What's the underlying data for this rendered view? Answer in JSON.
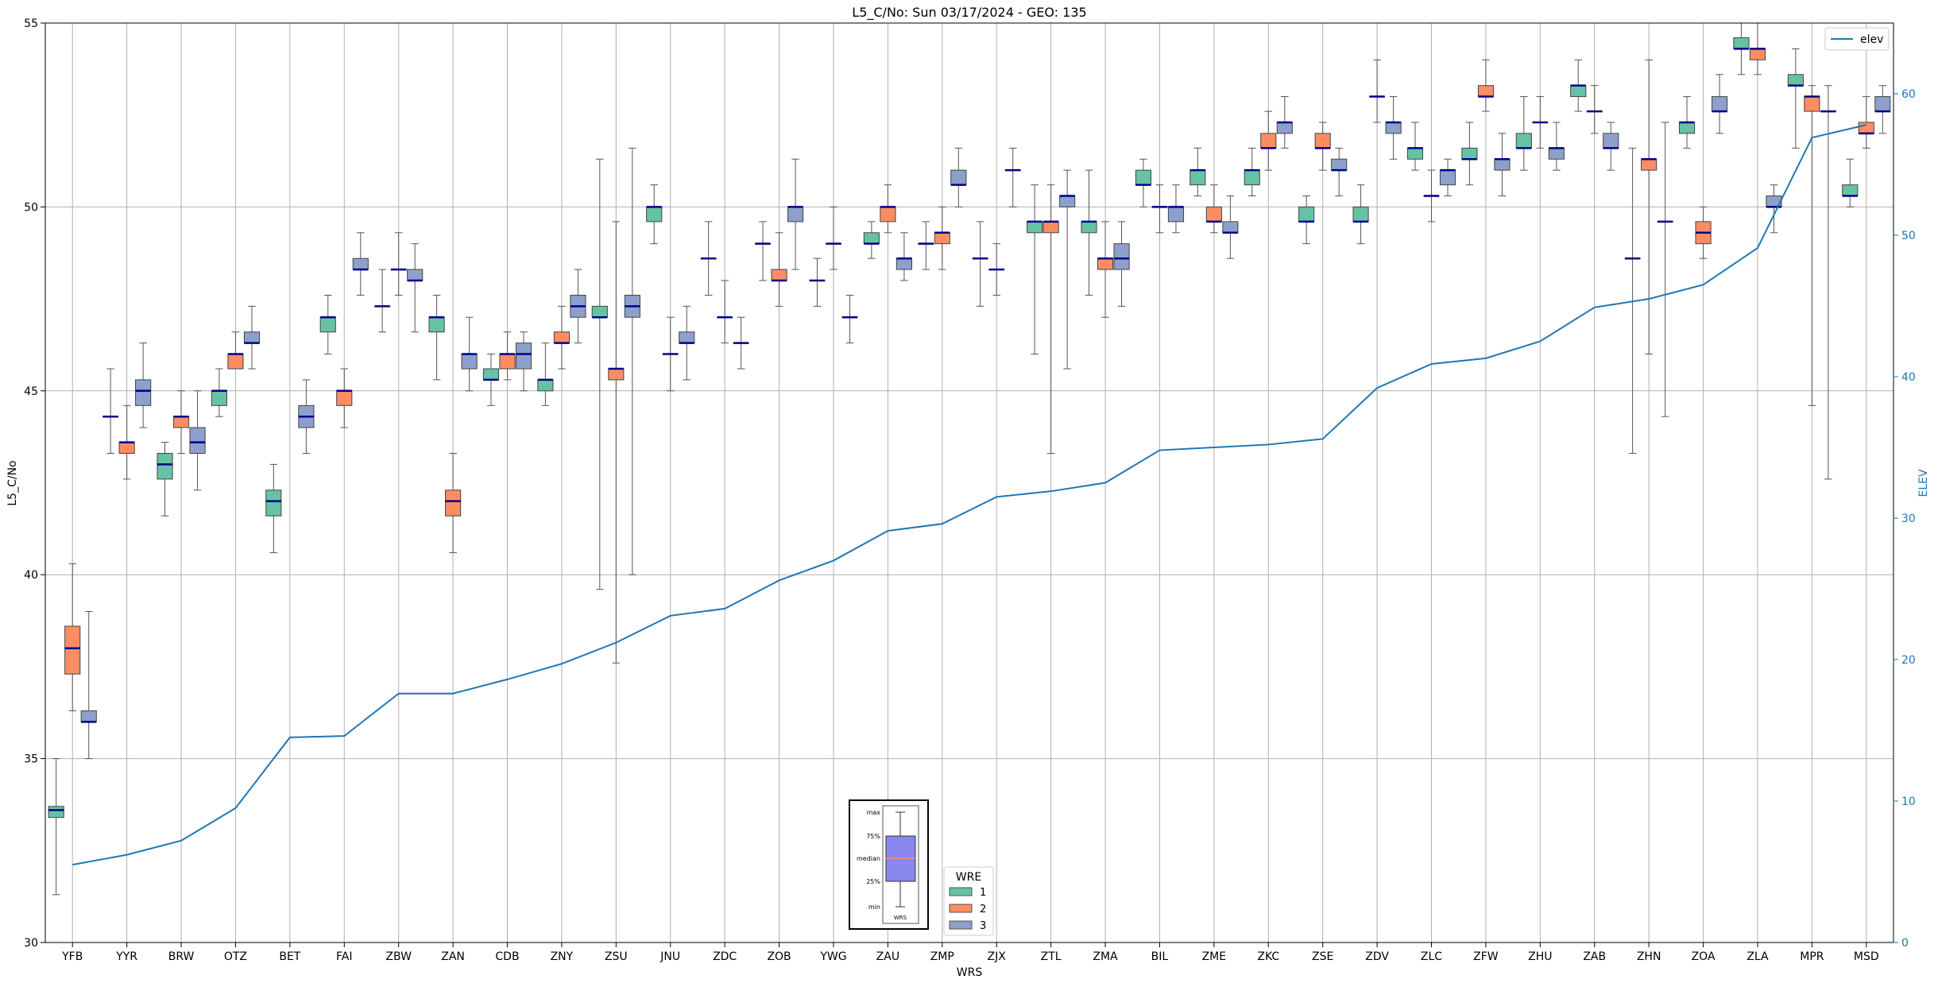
{
  "chart_data": {
    "type": "box",
    "title": "L5_C/No: Sun 03/17/2024 - GEO: 135",
    "xlabel": "WRS",
    "ylabel": "L5_C/No",
    "y2label": "ELEV",
    "ylim": [
      30,
      55
    ],
    "y2lim": [
      0,
      65
    ],
    "yticks": [
      30,
      35,
      40,
      45,
      50,
      55
    ],
    "y2ticks": [
      0,
      10,
      20,
      30,
      40,
      50,
      60
    ],
    "grid": true,
    "categories": [
      "YFB",
      "YYR",
      "BRW",
      "OTZ",
      "BET",
      "FAI",
      "ZBW",
      "ZAN",
      "CDB",
      "ZNY",
      "ZSU",
      "JNU",
      "ZDC",
      "ZOB",
      "YWG",
      "ZAU",
      "ZMP",
      "ZJX",
      "ZTL",
      "ZMA",
      "BIL",
      "ZME",
      "ZKC",
      "ZSE",
      "ZDV",
      "ZLC",
      "ZFW",
      "ZHU",
      "ZAB",
      "ZHN",
      "ZOA",
      "ZLA",
      "MPR",
      "MSD"
    ],
    "wre_colors": {
      "1": "#66c2a5",
      "2": "#fc8d62",
      "3": "#8da0cb"
    },
    "boxes": [
      {
        "station": "YFB",
        "wre": "1",
        "min": 31.3,
        "q1": 33.4,
        "median": 33.6,
        "q3": 33.7,
        "max": 35.0
      },
      {
        "station": "YFB",
        "wre": "2",
        "min": 36.3,
        "q1": 37.3,
        "median": 38.0,
        "q3": 38.6,
        "max": 40.3
      },
      {
        "station": "YFB",
        "wre": "3",
        "min": 35.0,
        "q1": 36.0,
        "median": 36.0,
        "q3": 36.3,
        "max": 39.0
      },
      {
        "station": "YYR",
        "wre": "1",
        "min": 43.3,
        "q1": 44.3,
        "median": 44.3,
        "q3": 44.3,
        "max": 45.6
      },
      {
        "station": "YYR",
        "wre": "2",
        "min": 42.6,
        "q1": 43.3,
        "median": 43.6,
        "q3": 43.6,
        "max": 44.6
      },
      {
        "station": "YYR",
        "wre": "3",
        "min": 44.0,
        "q1": 44.6,
        "median": 45.0,
        "q3": 45.3,
        "max": 46.3
      },
      {
        "station": "BRW",
        "wre": "1",
        "min": 41.6,
        "q1": 42.6,
        "median": 43.0,
        "q3": 43.3,
        "max": 43.6
      },
      {
        "station": "BRW",
        "wre": "2",
        "min": 43.3,
        "q1": 44.0,
        "median": 44.3,
        "q3": 44.3,
        "max": 45.0
      },
      {
        "station": "BRW",
        "wre": "3",
        "min": 42.3,
        "q1": 43.3,
        "median": 43.6,
        "q3": 44.0,
        "max": 45.0
      },
      {
        "station": "OTZ",
        "wre": "1",
        "min": 44.3,
        "q1": 44.6,
        "median": 45.0,
        "q3": 45.0,
        "max": 45.6
      },
      {
        "station": "OTZ",
        "wre": "2",
        "min": 45.6,
        "q1": 45.6,
        "median": 46.0,
        "q3": 46.0,
        "max": 46.6
      },
      {
        "station": "OTZ",
        "wre": "3",
        "min": 45.6,
        "q1": 46.3,
        "median": 46.3,
        "q3": 46.6,
        "max": 47.3
      },
      {
        "station": "BET",
        "wre": "1",
        "min": 40.6,
        "q1": 41.6,
        "median": 42.0,
        "q3": 42.3,
        "max": 43.0
      },
      {
        "station": "BET",
        "wre": "3",
        "min": 43.3,
        "q1": 44.0,
        "median": 44.3,
        "q3": 44.6,
        "max": 45.3
      },
      {
        "station": "FAI",
        "wre": "1",
        "min": 46.0,
        "q1": 46.6,
        "median": 47.0,
        "q3": 47.0,
        "max": 47.6
      },
      {
        "station": "FAI",
        "wre": "2",
        "min": 44.0,
        "q1": 44.6,
        "median": 45.0,
        "q3": 45.0,
        "max": 45.6
      },
      {
        "station": "FAI",
        "wre": "3",
        "min": 47.6,
        "q1": 48.3,
        "median": 48.3,
        "q3": 48.6,
        "max": 49.3
      },
      {
        "station": "ZBW",
        "wre": "1",
        "min": 46.6,
        "q1": 47.3,
        "median": 47.3,
        "q3": 47.3,
        "max": 48.3
      },
      {
        "station": "ZBW",
        "wre": "2",
        "min": 47.6,
        "q1": 48.3,
        "median": 48.3,
        "q3": 48.3,
        "max": 49.3
      },
      {
        "station": "ZBW",
        "wre": "3",
        "min": 46.6,
        "q1": 48.0,
        "median": 48.0,
        "q3": 48.3,
        "max": 49.0
      },
      {
        "station": "ZAN",
        "wre": "1",
        "min": 45.3,
        "q1": 46.6,
        "median": 47.0,
        "q3": 47.0,
        "max": 47.6
      },
      {
        "station": "ZAN",
        "wre": "2",
        "min": 40.6,
        "q1": 41.6,
        "median": 42.0,
        "q3": 42.3,
        "max": 43.3
      },
      {
        "station": "ZAN",
        "wre": "3",
        "min": 45.0,
        "q1": 45.6,
        "median": 46.0,
        "q3": 46.0,
        "max": 47.0
      },
      {
        "station": "CDB",
        "wre": "1",
        "min": 44.6,
        "q1": 45.3,
        "median": 45.3,
        "q3": 45.6,
        "max": 46.0
      },
      {
        "station": "CDB",
        "wre": "2",
        "min": 45.3,
        "q1": 45.6,
        "median": 46.0,
        "q3": 46.0,
        "max": 46.6
      },
      {
        "station": "CDB",
        "wre": "3",
        "min": 45.0,
        "q1": 45.6,
        "median": 46.0,
        "q3": 46.3,
        "max": 46.6
      },
      {
        "station": "ZNY",
        "wre": "1",
        "min": 44.6,
        "q1": 45.0,
        "median": 45.3,
        "q3": 45.3,
        "max": 46.3
      },
      {
        "station": "ZNY",
        "wre": "2",
        "min": 45.6,
        "q1": 46.3,
        "median": 46.3,
        "q3": 46.6,
        "max": 47.3
      },
      {
        "station": "ZNY",
        "wre": "3",
        "min": 46.3,
        "q1": 47.0,
        "median": 47.3,
        "q3": 47.6,
        "max": 48.3
      },
      {
        "station": "ZSU",
        "wre": "1",
        "min": 39.6,
        "q1": 47.0,
        "median": 47.0,
        "q3": 47.3,
        "max": 51.3
      },
      {
        "station": "ZSU",
        "wre": "2",
        "min": 37.6,
        "q1": 45.3,
        "median": 45.6,
        "q3": 45.6,
        "max": 49.6
      },
      {
        "station": "ZSU",
        "wre": "3",
        "min": 40.0,
        "q1": 47.0,
        "median": 47.3,
        "q3": 47.6,
        "max": 51.6
      },
      {
        "station": "JNU",
        "wre": "1",
        "min": 49.0,
        "q1": 49.6,
        "median": 50.0,
        "q3": 50.0,
        "max": 50.6
      },
      {
        "station": "JNU",
        "wre": "2",
        "min": 45.0,
        "q1": 46.0,
        "median": 46.0,
        "q3": 46.0,
        "max": 47.0
      },
      {
        "station": "JNU",
        "wre": "3",
        "min": 45.3,
        "q1": 46.3,
        "median": 46.3,
        "q3": 46.6,
        "max": 47.3
      },
      {
        "station": "ZDC",
        "wre": "1",
        "min": 47.6,
        "q1": 48.6,
        "median": 48.6,
        "q3": 48.6,
        "max": 49.6
      },
      {
        "station": "ZDC",
        "wre": "2",
        "min": 46.3,
        "q1": 47.0,
        "median": 47.0,
        "q3": 47.0,
        "max": 48.0
      },
      {
        "station": "ZDC",
        "wre": "3",
        "min": 45.6,
        "q1": 46.3,
        "median": 46.3,
        "q3": 46.3,
        "max": 47.0
      },
      {
        "station": "ZOB",
        "wre": "1",
        "min": 48.0,
        "q1": 49.0,
        "median": 49.0,
        "q3": 49.0,
        "max": 49.6
      },
      {
        "station": "ZOB",
        "wre": "2",
        "min": 47.3,
        "q1": 48.0,
        "median": 48.0,
        "q3": 48.3,
        "max": 49.3
      },
      {
        "station": "ZOB",
        "wre": "3",
        "min": 48.3,
        "q1": 49.6,
        "median": 50.0,
        "q3": 50.0,
        "max": 51.3
      },
      {
        "station": "YWG",
        "wre": "1",
        "min": 47.3,
        "q1": 48.0,
        "median": 48.0,
        "q3": 48.0,
        "max": 48.6
      },
      {
        "station": "YWG",
        "wre": "2",
        "min": 48.3,
        "q1": 49.0,
        "median": 49.0,
        "q3": 49.0,
        "max": 50.0
      },
      {
        "station": "YWG",
        "wre": "3",
        "min": 46.3,
        "q1": 47.0,
        "median": 47.0,
        "q3": 47.0,
        "max": 47.6
      },
      {
        "station": "ZAU",
        "wre": "1",
        "min": 48.6,
        "q1": 49.0,
        "median": 49.0,
        "q3": 49.3,
        "max": 49.6
      },
      {
        "station": "ZAU",
        "wre": "2",
        "min": 49.3,
        "q1": 49.6,
        "median": 50.0,
        "q3": 50.0,
        "max": 50.6
      },
      {
        "station": "ZAU",
        "wre": "3",
        "min": 48.0,
        "q1": 48.3,
        "median": 48.6,
        "q3": 48.6,
        "max": 49.3
      },
      {
        "station": "ZMP",
        "wre": "1",
        "min": 48.3,
        "q1": 49.0,
        "median": 49.0,
        "q3": 49.0,
        "max": 49.6
      },
      {
        "station": "ZMP",
        "wre": "2",
        "min": 48.3,
        "q1": 49.0,
        "median": 49.3,
        "q3": 49.3,
        "max": 50.0
      },
      {
        "station": "ZMP",
        "wre": "3",
        "min": 50.0,
        "q1": 50.6,
        "median": 50.6,
        "q3": 51.0,
        "max": 51.6
      },
      {
        "station": "ZJX",
        "wre": "1",
        "min": 47.3,
        "q1": 48.6,
        "median": 48.6,
        "q3": 48.6,
        "max": 49.6
      },
      {
        "station": "ZJX",
        "wre": "2",
        "min": 47.6,
        "q1": 48.3,
        "median": 48.3,
        "q3": 48.3,
        "max": 49.0
      },
      {
        "station": "ZJX",
        "wre": "3",
        "min": 50.0,
        "q1": 51.0,
        "median": 51.0,
        "q3": 51.0,
        "max": 51.6
      },
      {
        "station": "ZTL",
        "wre": "1",
        "min": 46.0,
        "q1": 49.3,
        "median": 49.6,
        "q3": 49.6,
        "max": 50.6
      },
      {
        "station": "ZTL",
        "wre": "2",
        "min": 43.3,
        "q1": 49.3,
        "median": 49.6,
        "q3": 49.6,
        "max": 50.6
      },
      {
        "station": "ZTL",
        "wre": "3",
        "min": 45.6,
        "q1": 50.0,
        "median": 50.3,
        "q3": 50.3,
        "max": 51.0
      },
      {
        "station": "ZMA",
        "wre": "1",
        "min": 47.6,
        "q1": 49.3,
        "median": 49.6,
        "q3": 49.6,
        "max": 51.0
      },
      {
        "station": "ZMA",
        "wre": "2",
        "min": 47.0,
        "q1": 48.3,
        "median": 48.6,
        "q3": 48.6,
        "max": 49.6
      },
      {
        "station": "ZMA",
        "wre": "3",
        "min": 47.3,
        "q1": 48.3,
        "median": 48.6,
        "q3": 49.0,
        "max": 49.6
      },
      {
        "station": "BIL",
        "wre": "1",
        "min": 50.0,
        "q1": 50.6,
        "median": 50.6,
        "q3": 51.0,
        "max": 51.3
      },
      {
        "station": "BIL",
        "wre": "2",
        "min": 49.3,
        "q1": 50.0,
        "median": 50.0,
        "q3": 50.0,
        "max": 50.6
      },
      {
        "station": "BIL",
        "wre": "3",
        "min": 49.3,
        "q1": 49.6,
        "median": 50.0,
        "q3": 50.0,
        "max": 50.6
      },
      {
        "station": "ZME",
        "wre": "1",
        "min": 50.3,
        "q1": 50.6,
        "median": 51.0,
        "q3": 51.0,
        "max": 51.6
      },
      {
        "station": "ZME",
        "wre": "2",
        "min": 49.3,
        "q1": 49.6,
        "median": 49.6,
        "q3": 50.0,
        "max": 50.6
      },
      {
        "station": "ZME",
        "wre": "3",
        "min": 48.6,
        "q1": 49.3,
        "median": 49.3,
        "q3": 49.6,
        "max": 50.3
      },
      {
        "station": "ZKC",
        "wre": "1",
        "min": 50.3,
        "q1": 50.6,
        "median": 51.0,
        "q3": 51.0,
        "max": 51.6
      },
      {
        "station": "ZKC",
        "wre": "2",
        "min": 51.0,
        "q1": 51.6,
        "median": 51.6,
        "q3": 52.0,
        "max": 52.6
      },
      {
        "station": "ZKC",
        "wre": "3",
        "min": 51.6,
        "q1": 52.0,
        "median": 52.3,
        "q3": 52.3,
        "max": 53.0
      },
      {
        "station": "ZSE",
        "wre": "1",
        "min": 49.0,
        "q1": 49.6,
        "median": 49.6,
        "q3": 50.0,
        "max": 50.3
      },
      {
        "station": "ZSE",
        "wre": "2",
        "min": 51.0,
        "q1": 51.6,
        "median": 51.6,
        "q3": 52.0,
        "max": 52.3
      },
      {
        "station": "ZSE",
        "wre": "3",
        "min": 50.3,
        "q1": 51.0,
        "median": 51.0,
        "q3": 51.3,
        "max": 51.6
      },
      {
        "station": "ZDV",
        "wre": "1",
        "min": 49.0,
        "q1": 49.6,
        "median": 49.6,
        "q3": 50.0,
        "max": 50.6
      },
      {
        "station": "ZDV",
        "wre": "2",
        "min": 52.3,
        "q1": 53.0,
        "median": 53.0,
        "q3": 53.0,
        "max": 54.0
      },
      {
        "station": "ZDV",
        "wre": "3",
        "min": 51.3,
        "q1": 52.0,
        "median": 52.3,
        "q3": 52.3,
        "max": 53.0
      },
      {
        "station": "ZLC",
        "wre": "1",
        "min": 51.0,
        "q1": 51.3,
        "median": 51.6,
        "q3": 51.6,
        "max": 52.3
      },
      {
        "station": "ZLC",
        "wre": "2",
        "min": 49.6,
        "q1": 50.3,
        "median": 50.3,
        "q3": 50.3,
        "max": 51.0
      },
      {
        "station": "ZLC",
        "wre": "3",
        "min": 50.3,
        "q1": 50.6,
        "median": 51.0,
        "q3": 51.0,
        "max": 51.3
      },
      {
        "station": "ZFW",
        "wre": "1",
        "min": 50.6,
        "q1": 51.3,
        "median": 51.3,
        "q3": 51.6,
        "max": 52.3
      },
      {
        "station": "ZFW",
        "wre": "2",
        "min": 52.6,
        "q1": 53.0,
        "median": 53.0,
        "q3": 53.3,
        "max": 54.0
      },
      {
        "station": "ZFW",
        "wre": "3",
        "min": 50.3,
        "q1": 51.0,
        "median": 51.3,
        "q3": 51.3,
        "max": 52.0
      },
      {
        "station": "ZHU",
        "wre": "1",
        "min": 51.0,
        "q1": 51.6,
        "median": 51.6,
        "q3": 52.0,
        "max": 53.0
      },
      {
        "station": "ZHU",
        "wre": "2",
        "min": 51.6,
        "q1": 52.3,
        "median": 52.3,
        "q3": 52.3,
        "max": 53.0
      },
      {
        "station": "ZHU",
        "wre": "3",
        "min": 51.0,
        "q1": 51.3,
        "median": 51.6,
        "q3": 51.6,
        "max": 52.3
      },
      {
        "station": "ZAB",
        "wre": "1",
        "min": 52.6,
        "q1": 53.0,
        "median": 53.3,
        "q3": 53.3,
        "max": 54.0
      },
      {
        "station": "ZAB",
        "wre": "2",
        "min": 52.0,
        "q1": 52.6,
        "median": 52.6,
        "q3": 52.6,
        "max": 53.3
      },
      {
        "station": "ZAB",
        "wre": "3",
        "min": 51.0,
        "q1": 51.6,
        "median": 51.6,
        "q3": 52.0,
        "max": 52.3
      },
      {
        "station": "ZHN",
        "wre": "1",
        "min": 43.3,
        "q1": 48.6,
        "median": 48.6,
        "q3": 48.6,
        "max": 51.6
      },
      {
        "station": "ZHN",
        "wre": "2",
        "min": 46.0,
        "q1": 51.0,
        "median": 51.3,
        "q3": 51.3,
        "max": 54.0
      },
      {
        "station": "ZHN",
        "wre": "3",
        "min": 44.3,
        "q1": 49.6,
        "median": 49.6,
        "q3": 49.6,
        "max": 52.3
      },
      {
        "station": "ZOA",
        "wre": "1",
        "min": 51.6,
        "q1": 52.0,
        "median": 52.3,
        "q3": 52.3,
        "max": 53.0
      },
      {
        "station": "ZOA",
        "wre": "2",
        "min": 48.6,
        "q1": 49.0,
        "median": 49.3,
        "q3": 49.6,
        "max": 50.0
      },
      {
        "station": "ZOA",
        "wre": "3",
        "min": 52.0,
        "q1": 52.6,
        "median": 52.6,
        "q3": 53.0,
        "max": 53.6
      },
      {
        "station": "ZLA",
        "wre": "1",
        "min": 53.6,
        "q1": 54.3,
        "median": 54.3,
        "q3": 54.6,
        "max": 55.0
      },
      {
        "station": "ZLA",
        "wre": "2",
        "min": 53.6,
        "q1": 54.0,
        "median": 54.3,
        "q3": 54.3,
        "max": 55.0
      },
      {
        "station": "ZLA",
        "wre": "3",
        "min": 49.3,
        "q1": 50.0,
        "median": 50.0,
        "q3": 50.3,
        "max": 50.6
      },
      {
        "station": "MPR",
        "wre": "1",
        "min": 51.6,
        "q1": 53.3,
        "median": 53.3,
        "q3": 53.6,
        "max": 54.3
      },
      {
        "station": "MPR",
        "wre": "2",
        "min": 44.6,
        "q1": 52.6,
        "median": 53.0,
        "q3": 53.0,
        "max": 53.3
      },
      {
        "station": "MPR",
        "wre": "3",
        "min": 42.6,
        "q1": 52.6,
        "median": 52.6,
        "q3": 52.6,
        "max": 53.3
      },
      {
        "station": "MSD",
        "wre": "1",
        "min": 50.0,
        "q1": 50.3,
        "median": 50.3,
        "q3": 50.6,
        "max": 51.3
      },
      {
        "station": "MSD",
        "wre": "2",
        "min": 51.6,
        "q1": 52.0,
        "median": 52.0,
        "q3": 52.3,
        "max": 53.0
      },
      {
        "station": "MSD",
        "wre": "3",
        "min": 52.0,
        "q1": 52.6,
        "median": 52.6,
        "q3": 53.0,
        "max": 53.3
      }
    ],
    "elev_series": {
      "name": "elev",
      "y_axis": "right",
      "color": "#1f77b4",
      "values": [
        5.5,
        6.2,
        7.2,
        9.5,
        14.5,
        14.6,
        17.6,
        17.6,
        18.6,
        19.7,
        21.2,
        23.1,
        23.6,
        25.6,
        27.0,
        29.1,
        29.6,
        31.5,
        31.9,
        32.5,
        34.8,
        35.0,
        35.2,
        35.6,
        39.2,
        40.9,
        41.3,
        42.5,
        44.9,
        45.5,
        46.5,
        49.1,
        56.9,
        57.8
      ]
    },
    "legend": {
      "elev_position": "top-right",
      "wre_title": "WRE",
      "wre_position": "bottom-center",
      "wre_items": [
        "1",
        "2",
        "3"
      ]
    },
    "box_key": {
      "position": "bottom-center",
      "labels": {
        "max": "max",
        "q3": "75%",
        "median": "median",
        "q1": "25%",
        "min": "min"
      },
      "xlabel": "WRS",
      "fill": "#8888ee",
      "median_color": "#fc8d62"
    }
  }
}
